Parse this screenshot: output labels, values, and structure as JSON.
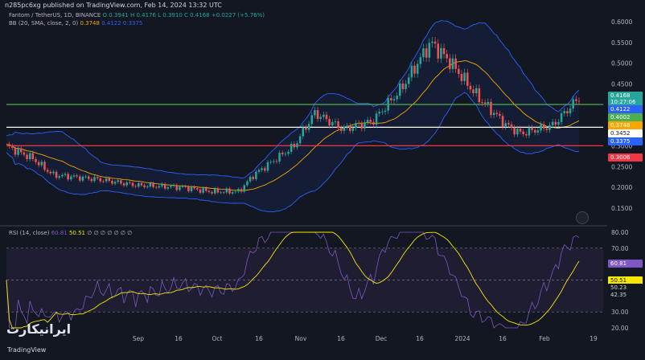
{
  "header": {
    "published": "n285pc6xg published on TradingView.com, Feb 14, 2024 13:32 UTC"
  },
  "legend": {
    "symbol": "Fantom / TetherUS, 1D, BINANCE",
    "ohlc": "O 0.3941 H 0.4176 L 0.3910 C 0.4168 +0.0227 (+5.76%)",
    "bb_label": "BB (20, SMA, close, 2, 0)",
    "bb_mid": "0.3748",
    "bb_up": "0.4122",
    "bb_low": "0.3375",
    "rsi_label": "RSI (14, close)",
    "rsi_val": "60.81",
    "rsi_ma": "50.51",
    "rsi_extra": "∅ ∅ ∅ ∅ ∅ ∅ ∅"
  },
  "price_axis": [
    "0.6000",
    "0.5500",
    "0.5000",
    "0.4500",
    "0.3500",
    "0.3000",
    "0.2500",
    "0.2000",
    "0.1500"
  ],
  "price_tags": [
    {
      "text": "0.4168",
      "bg": "#26a69a",
      "fg": "#ffffff"
    },
    {
      "text": "10:27:06",
      "bg": "#26a69a",
      "fg": "#ffffff"
    },
    {
      "text": "0.4122",
      "bg": "#2962ff",
      "fg": "#ffffff"
    },
    {
      "text": "0.4002",
      "bg": "#4caf50",
      "fg": "#ffffff"
    },
    {
      "text": "0.3748",
      "bg": "#f7a600",
      "fg": "#ffffff"
    },
    {
      "text": "0.3452",
      "bg": "#ffffff",
      "fg": "#131722"
    },
    {
      "text": "0.3375",
      "bg": "#2962ff",
      "fg": "#ffffff"
    },
    {
      "text": "0.3006",
      "bg": "#f23645",
      "fg": "#ffffff"
    }
  ],
  "rsi_axis": [
    "80.00",
    "70.00",
    "30.00",
    "20.00"
  ],
  "rsi_tags": [
    {
      "text": "60.81",
      "bg": "#7e57c2",
      "fg": "#ffffff"
    },
    {
      "text": "50.51",
      "bg": "#f7e600",
      "fg": "#131722"
    },
    {
      "text": "50.23",
      "bg": "#131722",
      "fg": "#d1d4dc"
    },
    {
      "text": "42.35",
      "bg": "#131722",
      "fg": "#d1d4dc"
    }
  ],
  "time_axis": [
    "Sep",
    "16",
    "Oct",
    "16",
    "Nov",
    "16",
    "Dec",
    "16",
    "2024",
    "16",
    "Feb",
    "19"
  ],
  "branding": {
    "logo": "ایرانیکارت",
    "tv": "TradingView"
  },
  "colors": {
    "bg": "#131722",
    "up": "#26a69a",
    "down": "#ef5350",
    "bb": "#2962ff",
    "basis": "#f7a600",
    "rsi": "#7e57c2",
    "rsi_ma": "#f7e600"
  },
  "chart_data": {
    "type": "candlestick",
    "title": "Fantom / TetherUS, 1D, BINANCE",
    "x_start": "2023-08-01",
    "x_end": "2024-02-14",
    "horizontal_lines": [
      {
        "value": 0.4002,
        "color": "#4caf50"
      },
      {
        "value": 0.3452,
        "color": "#ffffff"
      },
      {
        "value": 0.3006,
        "color": "#f23645"
      }
    ],
    "close_by_date": [
      [
        "2023-08-01",
        0.3
      ],
      [
        "2023-08-10",
        0.27
      ],
      [
        "2023-08-17",
        0.23
      ],
      [
        "2023-09-01",
        0.22
      ],
      [
        "2023-09-15",
        0.205
      ],
      [
        "2023-10-01",
        0.2
      ],
      [
        "2023-10-10",
        0.19
      ],
      [
        "2023-10-20",
        0.19
      ],
      [
        "2023-10-25",
        0.23
      ],
      [
        "2023-11-08",
        0.3
      ],
      [
        "2023-11-15",
        0.38
      ],
      [
        "2023-11-25",
        0.34
      ],
      [
        "2023-12-05",
        0.36
      ],
      [
        "2023-12-15",
        0.44
      ],
      [
        "2023-12-25",
        0.55
      ],
      [
        "2024-01-01",
        0.5
      ],
      [
        "2024-01-10",
        0.42
      ],
      [
        "2024-01-20",
        0.35
      ],
      [
        "2024-01-25",
        0.33
      ],
      [
        "2024-02-05",
        0.35
      ],
      [
        "2024-02-14",
        0.4168
      ]
    ],
    "rsi_ylim": [
      20,
      80
    ]
  }
}
